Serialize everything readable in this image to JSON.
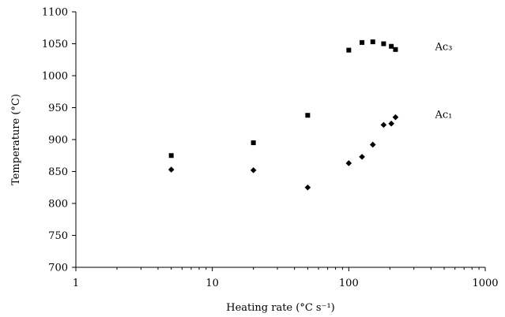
{
  "chart_data": {
    "type": "scatter",
    "title": "",
    "xlabel": "Heating rate (°C s⁻¹)",
    "ylabel": "Temperature (°C)",
    "xscale": "log",
    "xlim": [
      1,
      1000
    ],
    "ylim": [
      700,
      1100
    ],
    "xticks": [
      1,
      10,
      100,
      1000
    ],
    "xtick_labels": [
      "1",
      "10",
      "100",
      "1000"
    ],
    "yticks": [
      700,
      750,
      800,
      850,
      900,
      950,
      1000,
      1050,
      1100
    ],
    "ytick_labels": [
      "700",
      "750",
      "800",
      "850",
      "900",
      "950",
      "1000",
      "1050",
      "1100"
    ],
    "grid": false,
    "legend": "none",
    "series": [
      {
        "name": "Ac₃",
        "marker": "square",
        "color": "#000000",
        "points": [
          {
            "x": 5,
            "y": 875
          },
          {
            "x": 20,
            "y": 895
          },
          {
            "x": 50,
            "y": 938
          },
          {
            "x": 100,
            "y": 1040
          },
          {
            "x": 125,
            "y": 1052
          },
          {
            "x": 150,
            "y": 1053
          },
          {
            "x": 180,
            "y": 1050
          },
          {
            "x": 205,
            "y": 1046
          },
          {
            "x": 220,
            "y": 1041
          }
        ]
      },
      {
        "name": "Ac₁",
        "marker": "diamond",
        "color": "#000000",
        "points": [
          {
            "x": 5,
            "y": 853
          },
          {
            "x": 20,
            "y": 852
          },
          {
            "x": 50,
            "y": 825
          },
          {
            "x": 100,
            "y": 863
          },
          {
            "x": 125,
            "y": 873
          },
          {
            "x": 150,
            "y": 892
          },
          {
            "x": 180,
            "y": 923
          },
          {
            "x": 205,
            "y": 925
          },
          {
            "x": 220,
            "y": 935
          }
        ]
      }
    ]
  }
}
